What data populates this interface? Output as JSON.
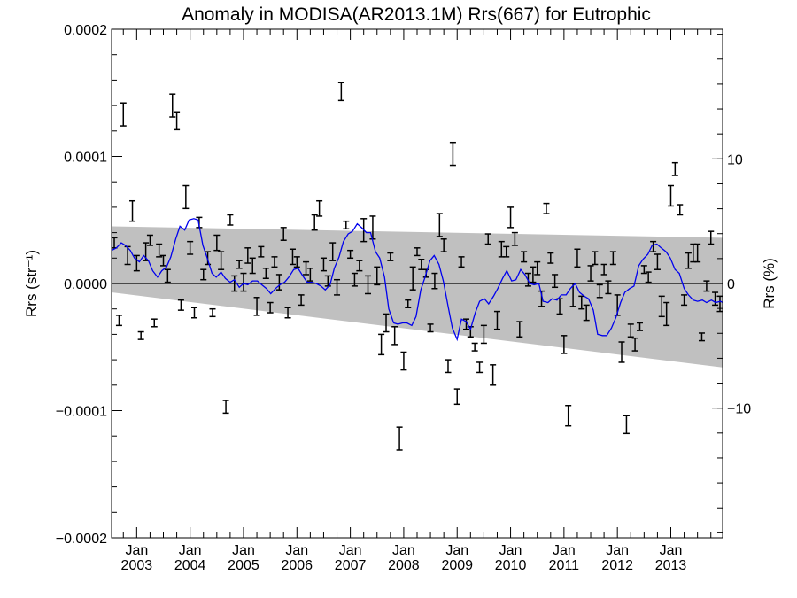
{
  "chart_data": {
    "type": "line",
    "title": "Anomaly in MODISA(AR2013.1M) Rrs(667) for Eutrophic",
    "ylabel_left": "Rrs (str⁻¹)",
    "ylabel_right": "Rrs (%)",
    "xlabel": "",
    "ylim_left": [
      -0.0002,
      0.0002
    ],
    "ylim_right": [
      -20.4,
      20.4
    ],
    "xlim": [
      2002.53,
      2013.97
    ],
    "grid": false,
    "legend": "none",
    "x_ticks": [
      {
        "value": 2003.0,
        "month": "Jan",
        "year": "2003"
      },
      {
        "value": 2004.0,
        "month": "Jan",
        "year": "2004"
      },
      {
        "value": 2005.0,
        "month": "Jan",
        "year": "2005"
      },
      {
        "value": 2006.0,
        "month": "Jan",
        "year": "2006"
      },
      {
        "value": 2007.0,
        "month": "Jan",
        "year": "2007"
      },
      {
        "value": 2008.0,
        "month": "Jan",
        "year": "2008"
      },
      {
        "value": 2009.0,
        "month": "Jan",
        "year": "2009"
      },
      {
        "value": 2010.0,
        "month": "Jan",
        "year": "2010"
      },
      {
        "value": 2011.0,
        "month": "Jan",
        "year": "2011"
      },
      {
        "value": 2012.0,
        "month": "Jan",
        "year": "2012"
      },
      {
        "value": 2013.0,
        "month": "Jan",
        "year": "2013"
      }
    ],
    "y_ticks_left": [
      {
        "value": 0.0002,
        "label": "0.0002"
      },
      {
        "value": 0.0001,
        "label": "0.0001"
      },
      {
        "value": 0.0,
        "label": "0.0000"
      },
      {
        "value": -0.0001,
        "label": "−0.0001"
      },
      {
        "value": -0.0002,
        "label": "−0.0002"
      }
    ],
    "y_ticks_right": [
      {
        "value": 10,
        "label": "10"
      },
      {
        "value": 0,
        "label": "0"
      },
      {
        "value": -10,
        "label": "−10"
      }
    ],
    "band": {
      "color": "#c0c0c0",
      "x": [
        2002.53,
        2013.97
      ],
      "upper": [
        4.5e-05,
        3.6e-05
      ],
      "lower": [
        -7e-06,
        -6.6e-05
      ]
    },
    "zero_line": {
      "value": 0,
      "color": "#000000"
    },
    "colors": {
      "smooth": "#0000ee",
      "points": "#000000"
    },
    "series": [
      {
        "kind": "errorbar",
        "x": [
          2002.58,
          2002.67,
          2002.75,
          2002.83,
          2002.92,
          2003.0,
          2003.08,
          2003.17,
          2003.25,
          2003.33,
          2003.42,
          2003.5,
          2003.58,
          2003.67,
          2003.75,
          2003.83,
          2003.92,
          2004.0,
          2004.08,
          2004.17,
          2004.25,
          2004.33,
          2004.42,
          2004.5,
          2004.58,
          2004.67,
          2004.75,
          2004.83,
          2004.92,
          2005.0,
          2005.08,
          2005.17,
          2005.25,
          2005.33,
          2005.42,
          2005.5,
          2005.58,
          2005.67,
          2005.75,
          2005.83,
          2005.92,
          2006.0,
          2006.08,
          2006.17,
          2006.25,
          2006.33,
          2006.42,
          2006.5,
          2006.58,
          2006.67,
          2006.75,
          2006.83,
          2006.92,
          2007.0,
          2007.08,
          2007.17,
          2007.25,
          2007.33,
          2007.42,
          2007.5,
          2007.58,
          2007.67,
          2007.75,
          2007.83,
          2007.92,
          2008.0,
          2008.08,
          2008.17,
          2008.25,
          2008.33,
          2008.42,
          2008.5,
          2008.58,
          2008.67,
          2008.75,
          2008.83,
          2008.92,
          2009.0,
          2009.08,
          2009.17,
          2009.25,
          2009.33,
          2009.42,
          2009.5,
          2009.58,
          2009.67,
          2009.75,
          2009.83,
          2009.92,
          2010.0,
          2010.08,
          2010.17,
          2010.25,
          2010.33,
          2010.42,
          2010.5,
          2010.58,
          2010.67,
          2010.75,
          2010.83,
          2010.92,
          2011.0,
          2011.08,
          2011.17,
          2011.25,
          2011.33,
          2011.42,
          2011.5,
          2011.58,
          2011.67,
          2011.75,
          2011.83,
          2011.92,
          2012.0,
          2012.08,
          2012.17,
          2012.25,
          2012.33,
          2012.42,
          2012.5,
          2012.58,
          2012.67,
          2012.75,
          2012.83,
          2012.92,
          2013.0,
          2013.08,
          2013.17,
          2013.25,
          2013.33,
          2013.42,
          2013.5,
          2013.58,
          2013.67,
          2013.75,
          2013.83,
          2013.92
        ],
        "y": [
          3.2e-05,
          -2.9e-05,
          0.000133,
          2.2e-05,
          5.7e-05,
          1.6e-05,
          -4.1e-05,
          2.5e-05,
          3.4e-05,
          -3.1e-05,
          2.6e-05,
          1.8e-05,
          6e-06,
          0.00014,
          0.000128,
          -1.7e-05,
          6.8e-05,
          2.8e-05,
          -2.3e-05,
          4.8e-05,
          7e-06,
          2e-05,
          -2.3e-05,
          3.2e-05,
          1.8e-05,
          -9.7e-05,
          5e-05,
          0.0,
          1.5e-05,
          1e-06,
          2.2e-05,
          1.4e-05,
          -1.8e-05,
          2.5e-05,
          8e-06,
          -1.9e-05,
          1.7e-05,
          1e-06,
          3.9e-05,
          -2.3e-05,
          2.1e-05,
          1.7e-05,
          -1.3e-05,
          1.2e-05,
          7e-06,
          4.8e-05,
          5.9e-05,
          1.5e-05,
          2e-06,
          2.5e-05,
          -3e-06,
          0.000151,
          4.6e-05,
          2.3e-05,
          3e-06,
          1.4e-05,
          4.2e-05,
          -1e-06,
          4.4e-05,
          6e-06,
          -4.8e-05,
          -3.1e-05,
          2.1e-05,
          -4.1e-05,
          -0.000122,
          -6.1e-05,
          -1.6e-05,
          4e-06,
          2.5e-05,
          1.5e-05,
          8e-06,
          -3.5e-05,
          2e-06,
          4.6e-05,
          3e-05,
          -6.5e-05,
          0.000102,
          -8.9e-05,
          1.7e-05,
          -3.2e-05,
          -3.8e-05,
          -5e-05,
          -6.6e-05,
          -4e-05,
          3.5e-05,
          -7.2e-05,
          -2.9e-05,
          2.7e-05,
          2.5e-05,
          5.2e-05,
          3.5e-05,
          -3.6e-05,
          2.1e-05,
          3e-06,
          7e-06,
          1.2e-05,
          -1.2e-05,
          5.9e-05,
          2e-05,
          2e-06,
          -1.8e-05,
          -4.8e-05,
          -0.000104,
          -9e-06,
          2e-05,
          -1.5e-05,
          -2.3e-05,
          8e-06,
          2e-05,
          -6e-06,
          1.1e-05,
          -3e-06,
          2e-05,
          -1.7e-05,
          -5.4e-05,
          -0.000111,
          -3.7e-05,
          -4.8e-05,
          -3.4e-05,
          1.1e-05,
          5e-06,
          2.9e-05,
          1.7e-05,
          -1.8e-05,
          -2.4e-05,
          6.9e-05,
          9e-05,
          5.8e-05,
          -1.3e-05,
          1.8e-05,
          2.4e-05,
          2.4e-05,
          -4.2e-05,
          -2e-06,
          3.6e-05,
          -1.2e-05,
          -1.6e-05
        ],
        "err": [
          4e-06,
          4e-06,
          9e-06,
          7e-06,
          8e-06,
          6e-06,
          3e-06,
          7e-06,
          4e-06,
          3e-06,
          5e-06,
          4e-06,
          5e-06,
          9e-06,
          7e-06,
          4e-06,
          9e-06,
          5e-06,
          4e-06,
          4e-06,
          4e-06,
          5e-06,
          3e-06,
          6e-06,
          7e-06,
          5e-06,
          4e-06,
          6e-06,
          3e-06,
          7e-06,
          6e-06,
          6e-06,
          7e-06,
          4e-06,
          4e-06,
          4e-06,
          4e-06,
          6e-06,
          5e-06,
          4e-06,
          6e-06,
          4e-06,
          4e-06,
          5e-06,
          5e-06,
          6e-06,
          6e-06,
          5e-06,
          4e-06,
          7e-06,
          6e-06,
          7e-06,
          3e-06,
          3e-06,
          5e-06,
          4e-06,
          9e-06,
          7e-06,
          9e-06,
          7e-06,
          8e-06,
          7e-06,
          3e-06,
          7e-06,
          9e-06,
          7e-06,
          3e-06,
          9e-06,
          3e-06,
          4e-06,
          3e-06,
          3e-06,
          6e-06,
          9e-06,
          5e-06,
          5e-06,
          9e-06,
          6e-06,
          4e-06,
          4e-06,
          4e-06,
          3e-06,
          4e-06,
          7e-06,
          4e-06,
          8e-06,
          7e-06,
          6e-06,
          4e-06,
          8e-06,
          5e-06,
          6e-06,
          4e-06,
          5e-06,
          6e-06,
          5e-06,
          6e-06,
          4e-06,
          4e-06,
          5e-06,
          6e-06,
          7e-06,
          8e-06,
          9e-06,
          7e-06,
          5e-06,
          6e-06,
          6e-06,
          5e-06,
          5e-06,
          4e-06,
          5e-06,
          5e-06,
          8e-06,
          8e-06,
          7e-06,
          5e-06,
          5e-06,
          3e-06,
          3e-06,
          4e-06,
          4e-06,
          6e-06,
          8e-06,
          9e-06,
          8e-06,
          5e-06,
          4e-06,
          4e-06,
          6e-06,
          7e-06,
          7e-06,
          3e-06,
          4e-06,
          5e-06,
          5e-06,
          6e-06
        ]
      },
      {
        "kind": "line",
        "x": [
          2002.53,
          2002.62,
          2002.71,
          2002.79,
          2002.88,
          2002.96,
          2003.05,
          2003.13,
          2003.22,
          2003.3,
          2003.39,
          2003.47,
          2003.56,
          2003.64,
          2003.73,
          2003.81,
          2003.9,
          2003.98,
          2004.07,
          2004.15,
          2004.24,
          2004.32,
          2004.41,
          2004.49,
          2004.58,
          2004.66,
          2004.75,
          2004.83,
          2004.92,
          2005.0,
          2005.08,
          2005.17,
          2005.26,
          2005.34,
          2005.43,
          2005.51,
          2005.6,
          2005.68,
          2005.77,
          2005.85,
          2005.94,
          2006.02,
          2006.11,
          2006.19,
          2006.28,
          2006.36,
          2006.45,
          2006.53,
          2006.62,
          2006.7,
          2006.79,
          2006.87,
          2006.96,
          2007.04,
          2007.13,
          2007.21,
          2007.3,
          2007.38,
          2007.47,
          2007.55,
          2007.64,
          2007.72,
          2007.81,
          2007.89,
          2007.98,
          2008.06,
          2008.15,
          2008.23,
          2008.32,
          2008.4,
          2008.49,
          2008.57,
          2008.66,
          2008.74,
          2008.83,
          2008.91,
          2009.0,
          2009.08,
          2009.17,
          2009.25,
          2009.34,
          2009.42,
          2009.51,
          2009.59,
          2009.68,
          2009.76,
          2009.85,
          2009.93,
          2010.02,
          2010.1,
          2010.19,
          2010.27,
          2010.36,
          2010.44,
          2010.53,
          2010.61,
          2010.7,
          2010.78,
          2010.87,
          2010.95,
          2011.04,
          2011.12,
          2011.21,
          2011.29,
          2011.38,
          2011.46,
          2011.55,
          2011.63,
          2011.72,
          2011.8,
          2011.89,
          2011.97,
          2012.06,
          2012.14,
          2012.23,
          2012.31,
          2012.4,
          2012.48,
          2012.57,
          2012.65,
          2012.74,
          2012.82,
          2012.91,
          2012.99,
          2013.08,
          2013.16,
          2013.25,
          2013.33,
          2013.42,
          2013.5,
          2013.59,
          2013.67,
          2013.76,
          2013.84,
          2013.93,
          2013.97
        ],
        "y": [
          2.6e-05,
          2.8e-05,
          3.2e-05,
          3e-05,
          2.6e-05,
          2e-05,
          1.7e-05,
          2.2e-05,
          1.8e-05,
          1e-05,
          5e-06,
          1e-05,
          1.3e-05,
          2.1e-05,
          3.5e-05,
          4.5e-05,
          4.2e-05,
          5e-05,
          5.1e-05,
          5e-05,
          3e-05,
          2e-05,
          8e-06,
          5e-06,
          9e-06,
          4e-06,
          1e-06,
          3e-06,
          -3e-06,
          0.0,
          -1e-06,
          2e-06,
          2e-06,
          -1e-06,
          -4e-06,
          -8e-06,
          -4e-06,
          -1e-06,
          1e-06,
          5e-06,
          1.1e-05,
          1.2e-05,
          6e-06,
          1e-06,
          1e-06,
          0.0,
          -2e-06,
          -5e-06,
          -1e-06,
          1.2e-05,
          2.1e-05,
          3.3e-05,
          3.9e-05,
          4.1e-05,
          4.7e-05,
          4.4e-05,
          4e-05,
          4e-05,
          2.5e-05,
          2e-05,
          5e-06,
          -2e-05,
          -3.1e-05,
          -3.2e-05,
          -3.1e-05,
          -3.1e-05,
          -3.3e-05,
          -2.6e-05,
          -5e-06,
          5e-06,
          1.8e-05,
          2.2e-05,
          1.5e-05,
          2e-06,
          -1.8e-05,
          -3.5e-05,
          -4.4e-05,
          -2.8e-05,
          -3e-05,
          -3.6e-05,
          -2.3e-05,
          -1.4e-05,
          -1.2e-05,
          -1.6e-05,
          -1e-05,
          -4e-06,
          4e-06,
          1e-05,
          2e-06,
          3e-06,
          1.1e-05,
          7e-06,
          0.0,
          -1e-06,
          0.0,
          -1.4e-05,
          -1.5e-05,
          -1.2e-05,
          -1.3e-05,
          -9e-06,
          -9e-06,
          -4e-06,
          0.0,
          -7e-06,
          -1e-05,
          -1.2e-05,
          -2.1e-05,
          -4e-05,
          -4.1e-05,
          -4.1e-05,
          -3.5e-05,
          -2.7e-05,
          -1.5e-05,
          -7e-06,
          -4e-06,
          -2e-06,
          1.4e-05,
          1.9e-05,
          2.3e-05,
          3e-05,
          3.1e-05,
          2.8e-05,
          2.5e-05,
          2e-05,
          1.1e-05,
          8e-06,
          -4e-06,
          -9e-06,
          -1.3e-05,
          -1.4e-05,
          -1.3e-05,
          -1.5e-05,
          -1.3e-05,
          -1.5e-05,
          -1.4e-05,
          -1.5e-05
        ]
      }
    ]
  }
}
